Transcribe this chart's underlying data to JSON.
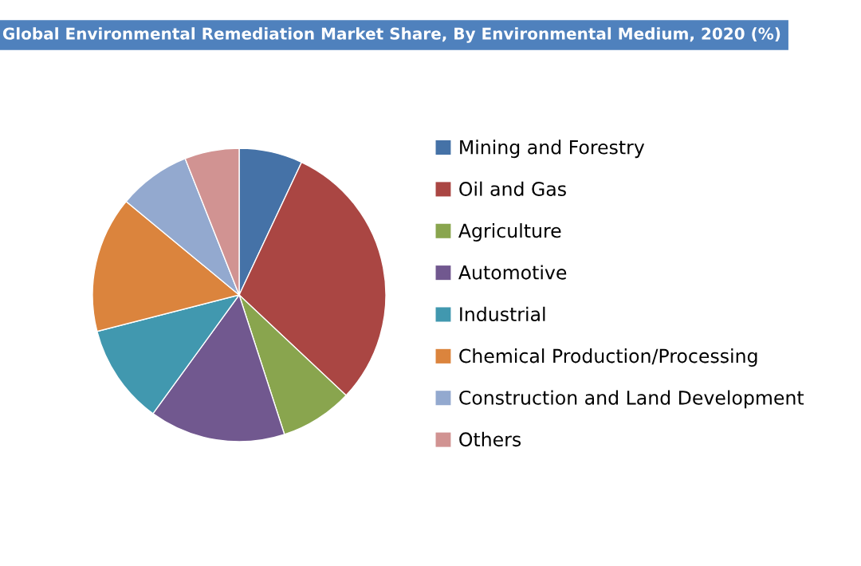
{
  "chart_data": {
    "type": "pie",
    "title": "Global Environmental Remediation Market Share, By Environmental Medium, 2020 (%)",
    "categories": [
      "Mining and Forestry",
      "Oil and Gas",
      "Agriculture",
      "Automotive",
      "Industrial",
      "Chemical Production/Processing",
      "Construction and Land Development",
      "Others"
    ],
    "values": [
      7,
      30,
      8,
      15,
      11,
      15,
      8,
      6
    ],
    "colors": [
      "#4572a7",
      "#aa4643",
      "#89a54e",
      "#71588f",
      "#4198af",
      "#db843d",
      "#93a9cf",
      "#d19392"
    ],
    "legend": "right"
  }
}
